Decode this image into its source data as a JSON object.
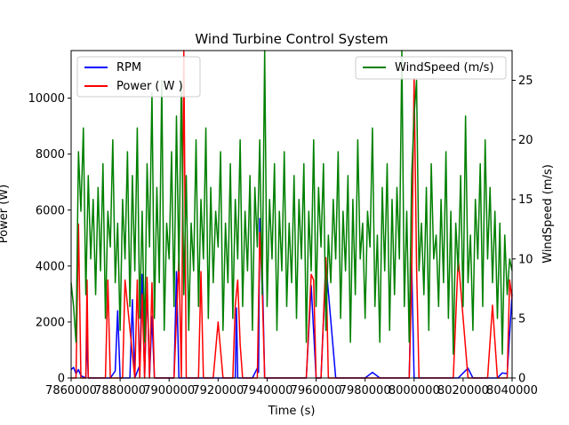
{
  "chart_data": {
    "type": "line",
    "title": "Wind Turbine Control System",
    "xlabel": "Time (s)",
    "ylabel_left": "Power  (W)",
    "ylabel_right": "WindSpeed (m/s)",
    "xlim": [
      7860000,
      8040000
    ],
    "ylim_left": [
      0,
      11700
    ],
    "ylim_right": [
      0,
      27.5
    ],
    "x_ticks": [
      7860000,
      7880000,
      7900000,
      7920000,
      7940000,
      7960000,
      7980000,
      8000000,
      8020000,
      8040000
    ],
    "x_tick_labels": [
      "7860000",
      "7880000",
      "7900000",
      "7920000",
      "7940000",
      "7960000",
      "7980000",
      "8000000",
      "8020000",
      "8040000"
    ],
    "y_ticks_left": [
      0,
      2000,
      4000,
      6000,
      8000,
      10000
    ],
    "y_tick_labels_left": [
      "0",
      "2000",
      "4000",
      "6000",
      "8000",
      "10000"
    ],
    "y_ticks_right": [
      0,
      5,
      10,
      15,
      20,
      25
    ],
    "y_tick_labels_right": [
      "0",
      "5",
      "10",
      "15",
      "20",
      "25"
    ],
    "legend_left": {
      "placement": "top-left",
      "entries": [
        {
          "name": "RPM",
          "color": "#0000ff"
        },
        {
          "name": "Power   ( W )",
          "color": "#ff0000"
        }
      ]
    },
    "legend_right": {
      "placement": "top-right",
      "entries": [
        {
          "name": "WindSpeed (m/s)",
          "color": "#008000"
        }
      ]
    },
    "series": [
      {
        "name": "RPM",
        "axis": "left",
        "color": "#0000ff",
        "x": [
          7860000,
          7861000,
          7862000,
          7863000,
          7864000,
          7866000,
          7866500,
          7867000,
          7870000,
          7874000,
          7876000,
          7878000,
          7879000,
          7880000,
          7884000,
          7885000,
          7886000,
          7888000,
          7889000,
          7890000,
          7891000,
          7892000,
          7893000,
          7894000,
          7896000,
          7898000,
          7900000,
          7902000,
          7903000,
          7904000,
          7908000,
          7910000,
          7914000,
          7918000,
          7920000,
          7922000,
          7924000,
          7927000,
          7927500,
          7928000,
          7930000,
          7934000,
          7936000,
          7936500,
          7937000,
          7938000,
          7939000,
          7940000,
          7944000,
          7948000,
          7952000,
          7956000,
          7958000,
          7960000,
          7962000,
          7964000,
          7968000,
          7970000,
          7974000,
          7976000,
          7980000,
          7983000,
          7986000,
          7990000,
          7994000,
          7996000,
          7998000,
          7999000,
          8000000,
          8002000,
          8006000,
          8010000,
          8014000,
          8018000,
          8022000,
          8024000,
          8026000,
          8030000,
          8034000,
          8036000,
          8038000,
          8040000
        ],
        "values": [
          300,
          380,
          150,
          300,
          80,
          0,
          1500,
          0,
          0,
          0,
          0,
          250,
          2400,
          0,
          0,
          2800,
          0,
          450,
          3700,
          0,
          3400,
          0,
          2200,
          0,
          0,
          0,
          0,
          0,
          3800,
          0,
          0,
          0,
          0,
          0,
          0,
          0,
          0,
          0,
          2500,
          0,
          0,
          0,
          350,
          200,
          5700,
          4000,
          0,
          0,
          0,
          0,
          0,
          0,
          3300,
          0,
          0,
          4100,
          0,
          0,
          0,
          0,
          0,
          200,
          0,
          0,
          0,
          0,
          0,
          4100,
          0,
          0,
          0,
          0,
          0,
          0,
          350,
          0,
          0,
          0,
          0,
          180,
          150,
          3000
        ]
      },
      {
        "name": "Power   ( W )",
        "axis": "left",
        "color": "#ff0000",
        "x": [
          7860000,
          7862000,
          7863000,
          7864000,
          7866000,
          7866500,
          7867000,
          7870000,
          7874000,
          7875000,
          7876000,
          7880000,
          7881000,
          7882000,
          7886000,
          7887000,
          7888000,
          7889000,
          7890000,
          7891000,
          7892000,
          7893000,
          7894000,
          7896000,
          7898000,
          7900000,
          7901000,
          7902000,
          7904000,
          7905000,
          7906000,
          7907000,
          7908000,
          7910000,
          7912000,
          7913000,
          7914000,
          7916000,
          7918000,
          7920000,
          7922000,
          7924000,
          7926000,
          7927000,
          7928000,
          7929000,
          7930000,
          7932000,
          7934000,
          7936000,
          7937000,
          7938000,
          7939000,
          7940000,
          7944000,
          7948000,
          7950000,
          7952000,
          7956000,
          7958000,
          7959000,
          7960000,
          7962000,
          7964000,
          7965000,
          7966000,
          7968000,
          7970000,
          7972000,
          7974000,
          7976000,
          7978000,
          7980000,
          7982000,
          7984000,
          7986000,
          7988000,
          7990000,
          7992000,
          7994000,
          7996000,
          7998000,
          7999000,
          8000000,
          8001000,
          8002000,
          8006000,
          8010000,
          8014000,
          8016000,
          8018000,
          8022000,
          8026000,
          8030000,
          8032000,
          8034000,
          8038000,
          8039000,
          8040000
        ],
        "values": [
          0,
          0,
          5500,
          0,
          0,
          3500,
          0,
          0,
          0,
          3500,
          0,
          0,
          0,
          3500,
          0,
          3500,
          0,
          3000,
          0,
          3600,
          0,
          3400,
          0,
          0,
          0,
          0,
          0,
          0,
          4300,
          0,
          11700,
          0,
          0,
          0,
          0,
          3800,
          0,
          0,
          0,
          2000,
          0,
          0,
          0,
          2600,
          3500,
          1200,
          0,
          0,
          0,
          0,
          5200,
          3200,
          0,
          0,
          0,
          0,
          0,
          0,
          0,
          3700,
          3500,
          0,
          0,
          4300,
          0,
          0,
          0,
          0,
          0,
          0,
          0,
          0,
          0,
          0,
          0,
          0,
          0,
          0,
          0,
          0,
          0,
          0,
          3500,
          10700,
          4000,
          0,
          0,
          0,
          0,
          0,
          4300,
          0,
          0,
          0,
          2600,
          0,
          0,
          3500,
          2800
        ]
      },
      {
        "name": "WindSpeed (m/s)",
        "axis": "right",
        "color": "#008000",
        "x": [
          7860000,
          7861000,
          7862000,
          7863000,
          7864000,
          7865000,
          7866000,
          7867000,
          7868000,
          7869000,
          7870000,
          7871000,
          7872000,
          7873000,
          7874000,
          7875000,
          7876000,
          7877000,
          7878000,
          7879000,
          7880000,
          7881000,
          7882000,
          7883000,
          7884000,
          7885000,
          7886000,
          7887000,
          7888000,
          7889000,
          7890000,
          7891000,
          7892000,
          7893000,
          7894000,
          7895000,
          7896000,
          7897000,
          7898000,
          7899000,
          7900000,
          7901000,
          7902000,
          7903000,
          7904000,
          7905000,
          7906000,
          7907000,
          7908000,
          7909000,
          7910000,
          7911000,
          7912000,
          7913000,
          7914000,
          7915000,
          7916000,
          7917000,
          7918000,
          7919000,
          7920000,
          7921000,
          7922000,
          7923000,
          7924000,
          7925000,
          7926000,
          7927000,
          7928000,
          7929000,
          7930000,
          7931000,
          7932000,
          7933000,
          7934000,
          7935000,
          7936000,
          7937000,
          7938000,
          7939000,
          7940000,
          7941000,
          7942000,
          7943000,
          7944000,
          7945000,
          7946000,
          7947000,
          7948000,
          7949000,
          7950000,
          7951000,
          7952000,
          7953000,
          7954000,
          7955000,
          7956000,
          7957000,
          7958000,
          7959000,
          7960000,
          7961000,
          7962000,
          7963000,
          7964000,
          7965000,
          7966000,
          7967000,
          7968000,
          7969000,
          7970000,
          7971000,
          7972000,
          7973000,
          7974000,
          7975000,
          7976000,
          7977000,
          7978000,
          7979000,
          7980000,
          7981000,
          7982000,
          7983000,
          7984000,
          7985000,
          7986000,
          7987000,
          7988000,
          7989000,
          7990000,
          7991000,
          7992000,
          7993000,
          7994000,
          7995000,
          7996000,
          7997000,
          7998000,
          7999000,
          8000000,
          8001000,
          8002000,
          8003000,
          8004000,
          8005000,
          8006000,
          8007000,
          8008000,
          8009000,
          8010000,
          8011000,
          8012000,
          8013000,
          8014000,
          8015000,
          8016000,
          8017000,
          8018000,
          8019000,
          8020000,
          8021000,
          8022000,
          8023000,
          8024000,
          8025000,
          8026000,
          8027000,
          8028000,
          8029000,
          8030000,
          8031000,
          8032000,
          8033000,
          8034000,
          8035000,
          8036000,
          8037000,
          8038000,
          8039000,
          8040000
        ],
        "values": [
          8,
          6,
          3,
          19,
          14,
          21,
          7,
          17,
          10,
          15,
          7,
          16,
          9,
          18,
          5,
          14,
          11,
          20,
          8,
          13,
          4,
          15,
          10,
          19,
          6,
          17,
          9,
          21,
          5,
          14,
          3,
          18,
          11,
          24,
          5,
          16,
          8,
          25,
          4,
          13,
          10,
          19,
          6,
          22,
          9,
          25,
          7,
          17,
          4,
          13,
          9,
          20,
          6,
          15,
          10,
          21,
          5,
          16,
          8,
          14,
          11,
          19,
          4,
          13,
          8,
          18,
          5,
          15,
          10,
          20,
          6,
          14,
          9,
          17,
          4,
          16,
          11,
          20,
          7,
          27.5,
          6,
          15,
          10,
          18,
          4,
          14,
          9,
          19,
          6,
          13,
          8,
          17,
          5,
          15,
          10,
          18,
          3,
          14,
          9,
          20,
          6,
          16,
          11,
          18,
          4,
          12,
          8,
          15,
          10,
          19,
          5,
          14,
          9,
          17,
          3,
          15,
          7,
          20,
          10,
          13,
          5,
          14,
          11,
          21,
          6,
          12,
          3,
          16,
          9,
          18,
          4,
          15,
          7,
          16,
          10,
          27.5,
          6,
          14,
          3,
          17,
          22,
          25,
          9,
          13,
          7,
          16,
          4,
          18,
          10,
          12,
          6,
          15,
          8,
          19,
          5,
          14,
          2,
          13,
          9,
          17,
          6,
          22,
          8,
          12,
          4,
          15,
          10,
          18,
          6,
          20,
          10,
          16,
          8,
          14,
          5,
          13,
          2,
          12,
          7,
          10,
          9
        ]
      }
    ]
  }
}
